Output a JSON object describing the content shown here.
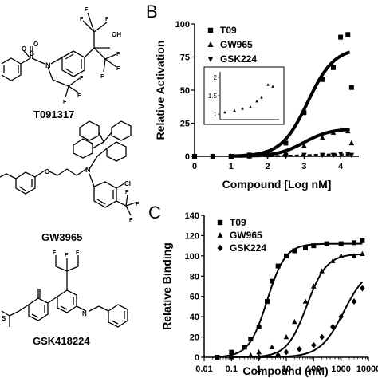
{
  "compounds": {
    "t09_name": "T091317",
    "gw_name": "GW3965",
    "gsk_name": "GSK418224",
    "atom_labels": {
      "oh": "OH",
      "f": "F",
      "o": "O",
      "n": "N",
      "s": "S",
      "cl": "Cl"
    }
  },
  "panel_b_label": "B",
  "panel_c_label": "C",
  "chart_data": [
    {
      "type": "scatter",
      "panel": "B",
      "xlabel": "Compound [Log nM]",
      "ylabel": "Relative Activation",
      "xlim": [
        0,
        4.5
      ],
      "ylim": [
        0,
        100
      ],
      "xticks": [
        "0",
        "1",
        "2",
        "3",
        "4"
      ],
      "yticks": [
        "0",
        "25",
        "50",
        "75",
        "100"
      ],
      "legend_position": "top-left",
      "series": [
        {
          "name": "T09",
          "marker": "square",
          "x": [
            0,
            0.5,
            1.0,
            1.5,
            2.0,
            2.5,
            3.0,
            3.5,
            3.8,
            4.0,
            4.2,
            4.3
          ],
          "y": [
            0,
            0,
            0,
            1,
            3,
            10,
            33,
            58,
            67,
            90,
            92,
            52
          ],
          "fit": {
            "bottom": 0,
            "top": 82,
            "logEC50": 3.1,
            "hill": 1.2
          }
        },
        {
          "name": "GW965",
          "marker": "triangle",
          "x": [
            0,
            0.5,
            1.0,
            1.5,
            2.0,
            2.5,
            3.0,
            3.5,
            3.8,
            4.0,
            4.2,
            4.3
          ],
          "y": [
            0,
            0,
            0,
            0,
            1,
            3,
            8,
            14,
            18,
            20,
            19,
            10
          ],
          "fit": {
            "bottom": 0,
            "top": 21,
            "logEC50": 3.0,
            "hill": 1.2
          }
        },
        {
          "name": "GSK224",
          "marker": "triangle-down",
          "x": [
            0,
            0.5,
            1.0,
            1.5,
            2.0,
            2.5,
            3.0,
            3.5,
            3.8,
            4.0,
            4.2,
            4.3
          ],
          "y": [
            0,
            0,
            0,
            0,
            0,
            0,
            1,
            1,
            1,
            2,
            2,
            1
          ],
          "fit": {
            "bottom": 0,
            "top": 1.5,
            "logEC50": 3.0,
            "hill": 1.0
          }
        }
      ],
      "inset": {
        "yticks": [
          "1",
          "1.5",
          "2"
        ],
        "ylim": [
          0.85,
          2.15
        ],
        "x": [
          0.8,
          1.4,
          1.9,
          2.4,
          2.8,
          3.1,
          3.5,
          3.8
        ],
        "y": [
          1.05,
          1.1,
          1.15,
          1.2,
          1.35,
          1.45,
          1.8,
          1.75
        ]
      }
    },
    {
      "type": "scatter",
      "panel": "C",
      "xscale": "log",
      "xlabel": "Compound (nM)",
      "ylabel": "Relative Binding",
      "xlim": [
        0.01,
        10000
      ],
      "ylim": [
        0,
        140
      ],
      "xticks": [
        "0.01",
        "0.1",
        "1",
        "10",
        "100",
        "1000",
        "10000"
      ],
      "yticks": [
        "0",
        "20",
        "40",
        "60",
        "80",
        "100",
        "120",
        "140"
      ],
      "legend_position": "top-left",
      "series": [
        {
          "name": "T09",
          "marker": "square",
          "x": [
            0.03,
            0.1,
            0.3,
            0.5,
            1,
            2,
            3,
            5,
            10,
            20,
            50,
            100,
            300,
            1000,
            3000,
            6000
          ],
          "y": [
            0,
            5,
            10,
            18,
            30,
            55,
            75,
            90,
            100,
            105,
            108,
            110,
            112,
            112,
            113,
            115
          ],
          "fit": {
            "bottom": 0,
            "top": 112,
            "logEC50": 0.3,
            "hill": 1.3
          }
        },
        {
          "name": "GW965",
          "marker": "triangle",
          "x": [
            0.1,
            0.5,
            1,
            3,
            10,
            20,
            50,
            100,
            200,
            500,
            1000,
            3000,
            6000
          ],
          "y": [
            0,
            2,
            5,
            10,
            20,
            35,
            55,
            70,
            85,
            95,
            100,
            100,
            102
          ],
          "fit": {
            "bottom": 0,
            "top": 102,
            "logEC50": 1.75,
            "hill": 1.2
          }
        },
        {
          "name": "GSK224",
          "marker": "diamond",
          "x": [
            1,
            5,
            10,
            30,
            100,
            200,
            500,
            1000,
            3000,
            6000
          ],
          "y": [
            0,
            2,
            5,
            8,
            12,
            20,
            30,
            40,
            55,
            68
          ],
          "fit": {
            "bottom": 0,
            "top": 90,
            "logEC50": 3.1,
            "hill": 1.0
          }
        }
      ]
    }
  ]
}
